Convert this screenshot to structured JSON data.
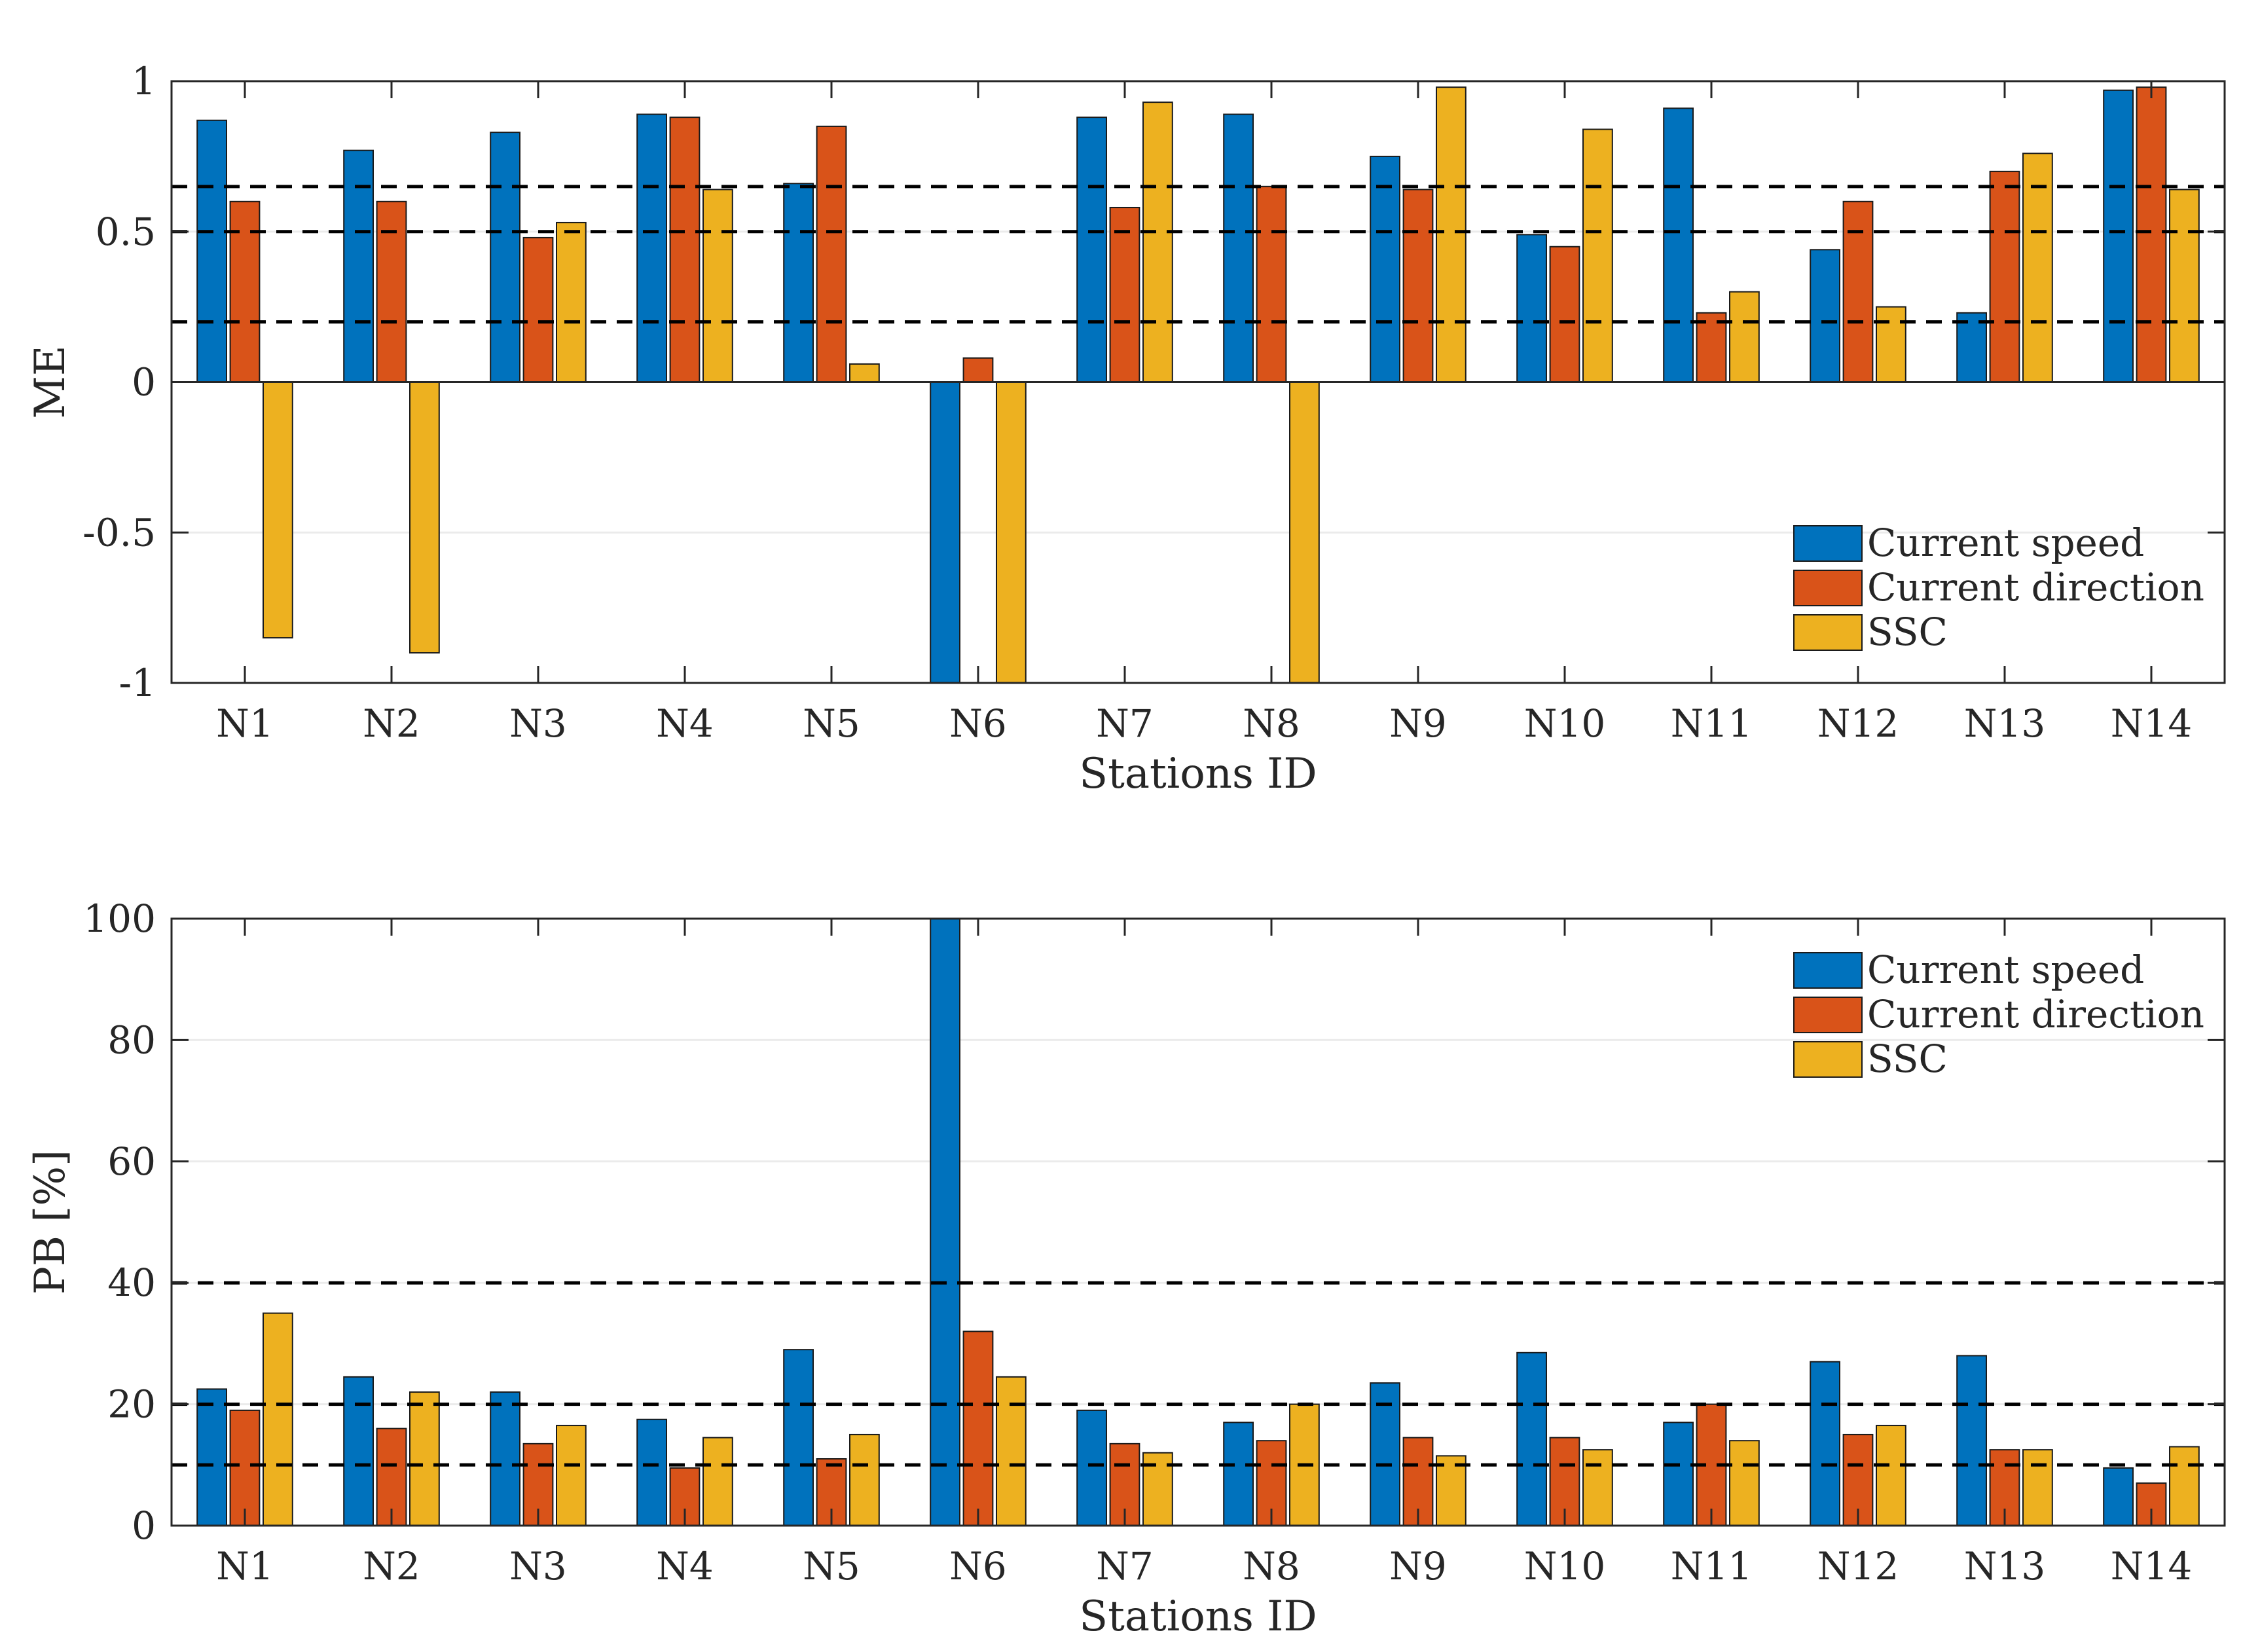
{
  "colors": {
    "current_speed": "#0072BD",
    "current_direction": "#D95319",
    "ssc": "#EDB120",
    "axis": "#262626",
    "grid": "#ebebeb",
    "reference_line": "#000000"
  },
  "chart_data": [
    {
      "type": "bar",
      "title": "",
      "xlabel": "Stations ID",
      "ylabel": "ME",
      "categories": [
        "N1",
        "N2",
        "N3",
        "N4",
        "N5",
        "N6",
        "N7",
        "N8",
        "N9",
        "N10",
        "N11",
        "N12",
        "N13",
        "N14"
      ],
      "ylim": [
        -1,
        1
      ],
      "yticks": [
        -1,
        -0.5,
        0,
        0.5,
        1
      ],
      "ytick_labels": [
        "-1",
        "-0.5",
        "0",
        "0.5",
        "1"
      ],
      "reference_lines": [
        0.2,
        0.5,
        0.65
      ],
      "grid": true,
      "legend_position": "bottom-right",
      "series": [
        {
          "name": "Current speed",
          "color_key": "current_speed",
          "values": [
            0.87,
            0.77,
            0.83,
            0.89,
            0.66,
            -1.0,
            0.88,
            0.89,
            0.75,
            0.49,
            0.91,
            0.44,
            0.23,
            0.97
          ]
        },
        {
          "name": "Current direction",
          "color_key": "current_direction",
          "values": [
            0.6,
            0.6,
            0.48,
            0.88,
            0.85,
            0.08,
            0.58,
            0.65,
            0.64,
            0.45,
            0.23,
            0.6,
            0.7,
            0.98
          ]
        },
        {
          "name": "SSC",
          "color_key": "ssc",
          "values": [
            -0.85,
            -0.9,
            0.53,
            0.64,
            0.06,
            -1.0,
            0.93,
            -1.0,
            0.98,
            0.84,
            0.3,
            0.25,
            0.76,
            0.64
          ]
        }
      ]
    },
    {
      "type": "bar",
      "title": "",
      "xlabel": "Stations ID",
      "ylabel": "PB [%]",
      "categories": [
        "N1",
        "N2",
        "N3",
        "N4",
        "N5",
        "N6",
        "N7",
        "N8",
        "N9",
        "N10",
        "N11",
        "N12",
        "N13",
        "N14"
      ],
      "ylim": [
        0,
        100
      ],
      "yticks": [
        0,
        20,
        40,
        60,
        80,
        100
      ],
      "ytick_labels": [
        "0",
        "20",
        "40",
        "60",
        "80",
        "100"
      ],
      "reference_lines": [
        10,
        20,
        40
      ],
      "grid": true,
      "legend_position": "top-right",
      "series": [
        {
          "name": "Current speed",
          "color_key": "current_speed",
          "values": [
            22.5,
            24.5,
            22,
            17.5,
            29,
            100,
            19,
            17,
            23.5,
            28.5,
            17,
            27,
            28,
            9.5
          ]
        },
        {
          "name": "Current direction",
          "color_key": "current_direction",
          "values": [
            19,
            16,
            13.5,
            9.5,
            11,
            32,
            13.5,
            14,
            14.5,
            14.5,
            20,
            15,
            12.5,
            7
          ]
        },
        {
          "name": "SSC",
          "color_key": "ssc",
          "values": [
            35,
            22,
            16.5,
            14.5,
            15,
            24.5,
            12,
            20,
            11.5,
            12.5,
            14,
            16.5,
            12.5,
            13
          ]
        }
      ]
    }
  ]
}
